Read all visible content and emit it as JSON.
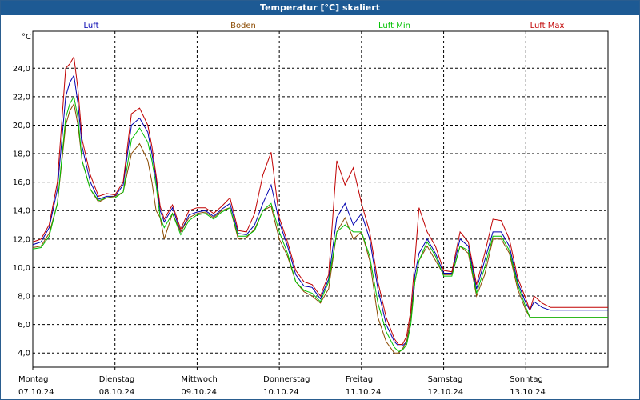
{
  "window": {
    "title": "Temperatur [°C] skaliert"
  },
  "chart_data": {
    "type": "line",
    "title": "Temperatur [°C] skaliert",
    "ylabel": "°C",
    "ylim": [
      3,
      26.6
    ],
    "xlim": [
      0,
      7
    ],
    "yticks": [
      4,
      6,
      8,
      10,
      12,
      14,
      16,
      18,
      20,
      22,
      24
    ],
    "ytick_labels": [
      "4,0",
      "6,0",
      "8,0",
      "10,0",
      "12,0",
      "14,0",
      "16,0",
      "18,0",
      "20,0",
      "22,0",
      "24,0"
    ],
    "xticks": [
      {
        "x": 0,
        "day": "Montag",
        "date": "07.10.24"
      },
      {
        "x": 1,
        "day": "Dienstag",
        "date": "08.10.24"
      },
      {
        "x": 2,
        "day": "Mittwoch",
        "date": "09.10.24"
      },
      {
        "x": 3,
        "day": "Donnerstag",
        "date": "10.10.24"
      },
      {
        "x": 4,
        "day": "Freitag",
        "date": "11.10.24"
      },
      {
        "x": 5,
        "day": "Samstag",
        "date": "12.10.24"
      },
      {
        "x": 6,
        "day": "Sonntag",
        "date": "13.10.24"
      }
    ],
    "grid": true,
    "legend_position": "top",
    "x": [
      0,
      0.1,
      0.2,
      0.3,
      0.4,
      0.45,
      0.5,
      0.55,
      0.6,
      0.7,
      0.8,
      0.9,
      1.0,
      1.1,
      1.2,
      1.3,
      1.4,
      1.45,
      1.5,
      1.55,
      1.6,
      1.7,
      1.8,
      1.9,
      2.0,
      2.1,
      2.2,
      2.3,
      2.4,
      2.5,
      2.6,
      2.7,
      2.8,
      2.9,
      3.0,
      3.1,
      3.2,
      3.3,
      3.4,
      3.5,
      3.6,
      3.7,
      3.8,
      3.9,
      4.0,
      4.1,
      4.2,
      4.3,
      4.4,
      4.45,
      4.5,
      4.55,
      4.6,
      4.65,
      4.7,
      4.8,
      4.9,
      5.0,
      5.1,
      5.2,
      5.3,
      5.4,
      5.5,
      5.6,
      5.7,
      5.8,
      5.9,
      6.0,
      6.05,
      6.1,
      6.2,
      6.3,
      6.4,
      6.5,
      6.6,
      6.7,
      6.8,
      6.9,
      7.0
    ],
    "series": [
      {
        "name": "Luft",
        "color": "#0000b0",
        "values": [
          11.6,
          11.8,
          12.8,
          15.5,
          22.0,
          23.0,
          23.5,
          21.5,
          18.5,
          16.0,
          14.8,
          15.0,
          15.0,
          15.8,
          20.0,
          20.5,
          19.5,
          18.0,
          16.2,
          14.0,
          13.2,
          14.2,
          12.5,
          13.7,
          13.9,
          14.0,
          13.6,
          14.1,
          14.5,
          12.4,
          12.3,
          13.0,
          14.5,
          15.8,
          13.2,
          11.5,
          9.5,
          8.7,
          8.6,
          7.8,
          9.2,
          13.5,
          14.5,
          13.0,
          13.8,
          12.0,
          8.5,
          6.0,
          4.8,
          4.5,
          4.5,
          4.8,
          6.5,
          9.5,
          11.0,
          12.0,
          11.0,
          9.6,
          9.6,
          12.0,
          11.5,
          8.5,
          10.5,
          12.5,
          12.5,
          11.5,
          9.0,
          7.5,
          7.0,
          7.6,
          7.2,
          7.0,
          7.0,
          7.0,
          7.0,
          7.0,
          7.0,
          7.0,
          7.0
        ]
      },
      {
        "name": "Boden",
        "color": "#8b4a00",
        "values": [
          11.4,
          11.5,
          12.4,
          14.5,
          20.0,
          21.0,
          21.5,
          20.0,
          17.5,
          15.5,
          14.6,
          14.9,
          15.0,
          15.3,
          18.0,
          18.7,
          17.5,
          16.0,
          14.0,
          13.5,
          12.0,
          13.8,
          12.5,
          13.5,
          13.8,
          13.9,
          13.5,
          14.0,
          14.2,
          12.0,
          12.1,
          12.7,
          14.0,
          14.3,
          12.0,
          10.8,
          9.0,
          8.3,
          8.0,
          7.5,
          8.5,
          12.5,
          13.5,
          12.0,
          12.5,
          10.5,
          6.5,
          4.8,
          4.0,
          4.0,
          4.3,
          4.8,
          6.5,
          9.0,
          10.5,
          11.5,
          10.5,
          9.5,
          9.5,
          11.5,
          11.0,
          8.0,
          9.5,
          12.0,
          12.0,
          11.0,
          8.5,
          7.0,
          6.5,
          6.5,
          6.5,
          6.5,
          6.5,
          6.5,
          6.5,
          6.5,
          6.5,
          6.5,
          6.5
        ]
      },
      {
        "name": "Luft Min",
        "color": "#00c000",
        "values": [
          11.3,
          11.4,
          12.2,
          14.5,
          20.5,
          21.5,
          22.0,
          20.5,
          17.5,
          15.5,
          14.7,
          14.9,
          14.9,
          15.3,
          19.0,
          19.8,
          18.8,
          17.5,
          15.8,
          13.5,
          12.8,
          13.8,
          12.3,
          13.3,
          13.7,
          13.8,
          13.4,
          13.9,
          14.2,
          12.2,
          12.2,
          12.6,
          14.0,
          14.5,
          12.5,
          11.0,
          9.0,
          8.4,
          8.2,
          7.6,
          9.0,
          12.5,
          13.0,
          12.5,
          12.5,
          10.8,
          7.5,
          5.5,
          4.4,
          4.1,
          4.2,
          4.6,
          6.0,
          9.0,
          10.5,
          11.8,
          10.8,
          9.4,
          9.4,
          11.5,
          11.2,
          8.2,
          10.0,
          12.2,
          12.2,
          11.2,
          8.8,
          7.2,
          6.5,
          6.5,
          6.5,
          6.5,
          6.5,
          6.5,
          6.5,
          6.5,
          6.5,
          6.5,
          6.5
        ]
      },
      {
        "name": "Luft Max",
        "color": "#c00000",
        "values": [
          11.8,
          12.0,
          13.0,
          16.0,
          24.0,
          24.3,
          24.8,
          22.5,
          19.0,
          16.5,
          15.0,
          15.2,
          15.1,
          16.0,
          20.8,
          21.2,
          20.0,
          18.5,
          16.5,
          14.3,
          13.4,
          14.4,
          12.7,
          14.0,
          14.2,
          14.2,
          13.8,
          14.3,
          14.9,
          12.6,
          12.5,
          13.8,
          16.5,
          18.1,
          13.5,
          11.8,
          9.8,
          9.0,
          8.8,
          8.0,
          9.5,
          17.5,
          15.8,
          17.0,
          14.5,
          12.5,
          9.0,
          6.5,
          5.0,
          4.6,
          4.6,
          5.2,
          7.0,
          10.5,
          14.2,
          12.5,
          11.5,
          9.8,
          9.7,
          12.5,
          11.8,
          8.8,
          11.0,
          13.4,
          13.3,
          12.0,
          9.3,
          7.8,
          7.0,
          8.0,
          7.5,
          7.2,
          7.2,
          7.2,
          7.2,
          7.2,
          7.2,
          7.2,
          7.2
        ]
      }
    ]
  }
}
